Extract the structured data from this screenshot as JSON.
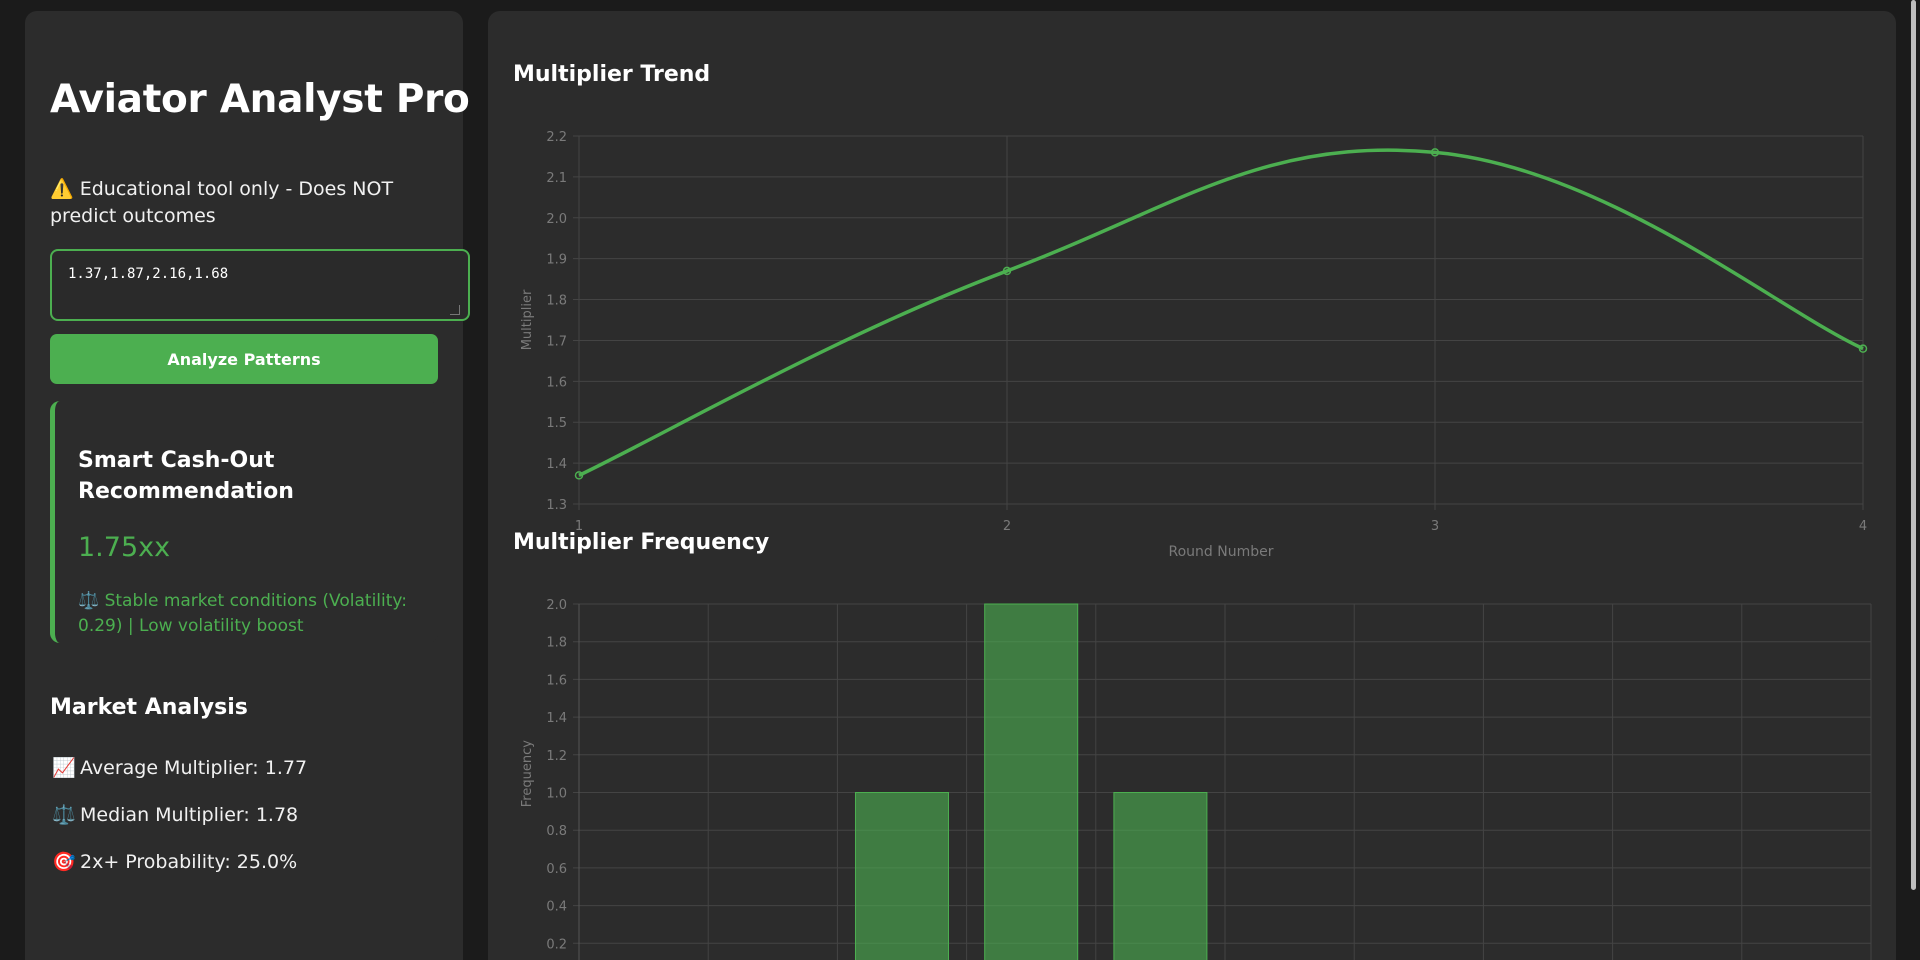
{
  "sidebar": {
    "title": "Aviator Analyst Pro",
    "notice_icon": "⚠️",
    "notice": "Educational tool only - Does NOT predict outcomes",
    "input_value": "1.37,1.87,2.16,1.68",
    "analyze_label": "Analyze Patterns",
    "accent_color": "#4caf50",
    "recommendation": {
      "title": "Smart Cash-Out Recommendation",
      "value": "1.75xx",
      "note_icon": "⚖️",
      "note": "Stable market conditions (Volatility: 0.29) | Low volatility boost"
    },
    "market": {
      "title": "Market Analysis",
      "stats": [
        {
          "icon": "📈",
          "text": "Average Multiplier: 1.77"
        },
        {
          "icon": "⚖️",
          "text": "Median Multiplier: 1.78"
        },
        {
          "icon": "🎯",
          "text": "2x+ Probability: 25.0%"
        }
      ]
    }
  },
  "main": {
    "trend_title": "Multiplier Trend",
    "frequency_title": "Multiplier Frequency"
  },
  "chart_data": [
    {
      "type": "line",
      "title": "Multiplier Trend",
      "xlabel": "Round Number",
      "ylabel": "Multiplier",
      "x": [
        1,
        2,
        3,
        4
      ],
      "values": [
        1.37,
        1.87,
        2.16,
        1.68
      ],
      "ylim": [
        1.3,
        2.2
      ],
      "yticks": [
        "2.2",
        "2.1",
        "2.0",
        "1.9",
        "1.8",
        "1.7",
        "1.6",
        "1.5",
        "1.4",
        "1.3"
      ],
      "xticks": [
        "1",
        "2",
        "3",
        "4"
      ],
      "grid": true,
      "color": "#4caf50"
    },
    {
      "type": "bar",
      "title": "Multiplier Frequency",
      "ylabel": "Frequency",
      "bins": 10,
      "bars": [
        {
          "bin": 2,
          "value": 1
        },
        {
          "bin": 3,
          "value": 2
        },
        {
          "bin": 4,
          "value": 1
        }
      ],
      "ylim": [
        0,
        2.0
      ],
      "yticks": [
        "2.0",
        "1.8",
        "1.6",
        "1.4",
        "1.2",
        "1.0",
        "0.8",
        "0.6",
        "0.4",
        "0.2"
      ],
      "grid": true,
      "color": "#4caf50"
    }
  ]
}
